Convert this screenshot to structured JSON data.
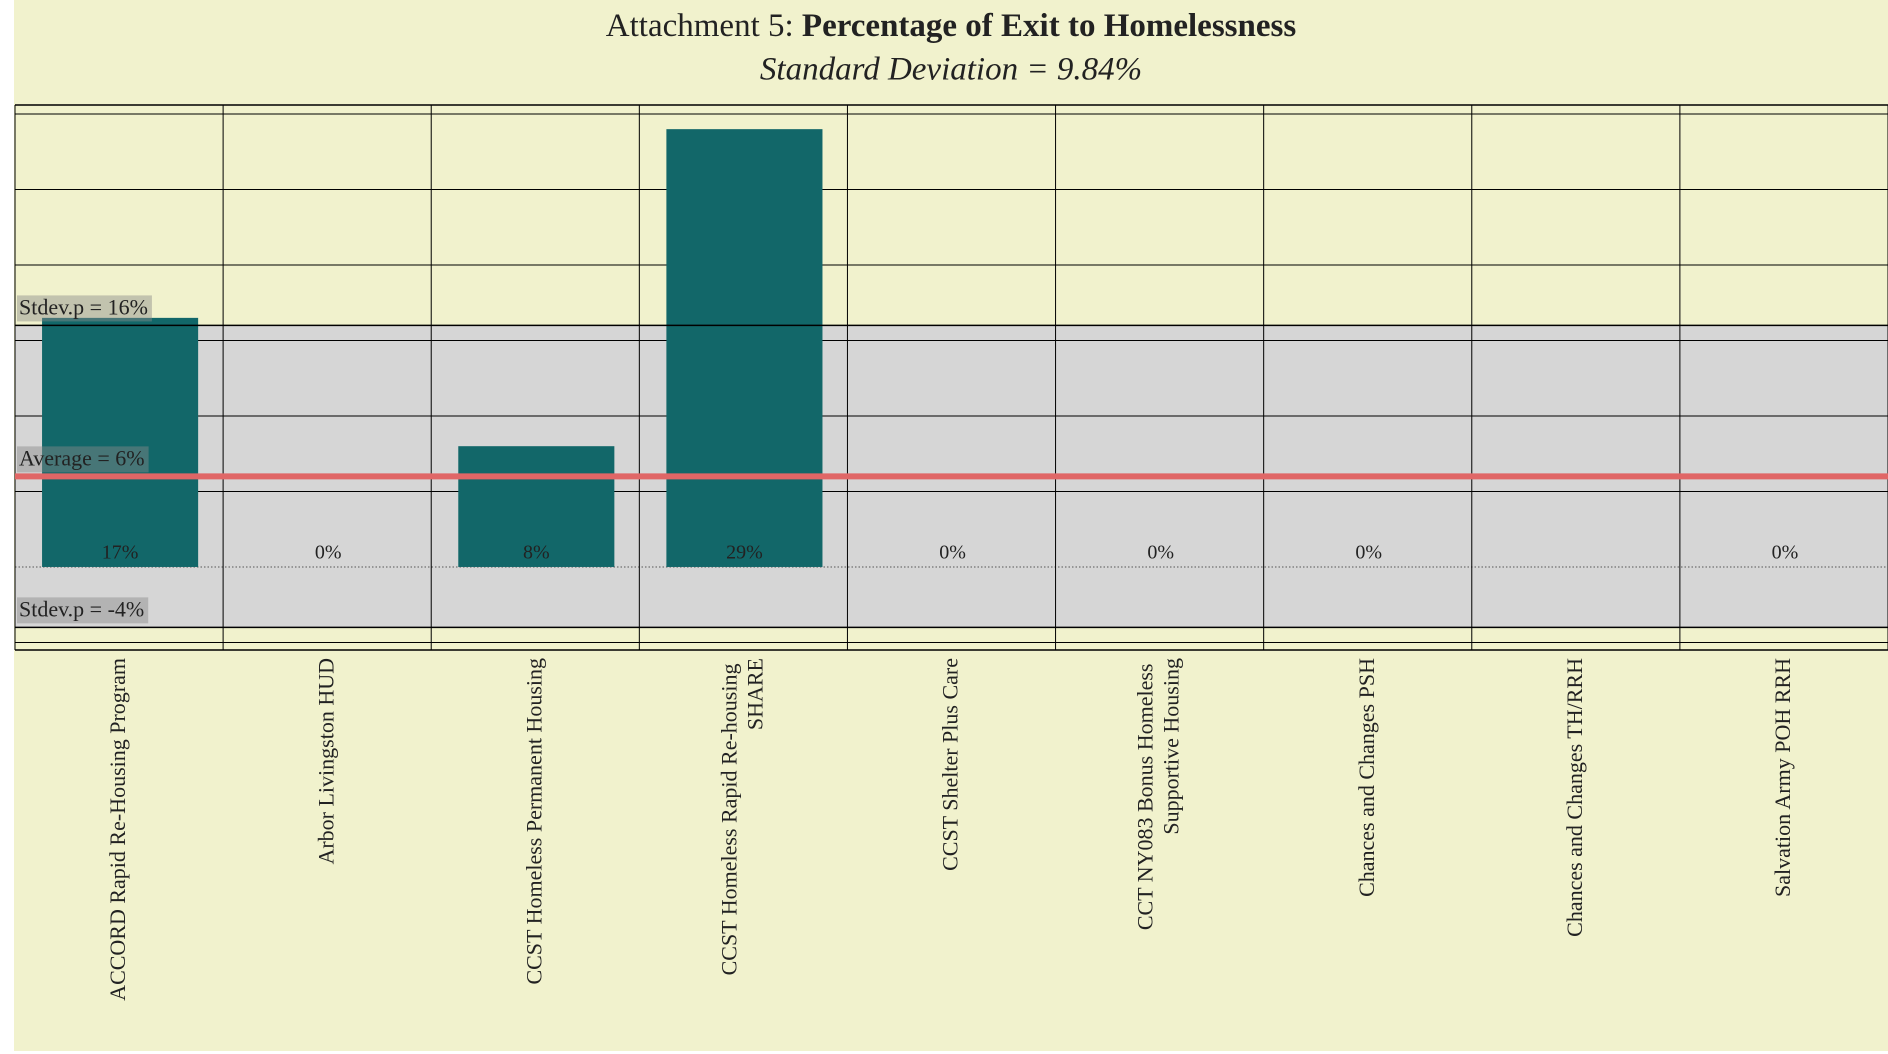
{
  "chart_data": {
    "type": "bar",
    "title_prefix": "Attachment 5:",
    "title": "Percentage of Exit to Homelessness",
    "subtitle": "Standard Deviation = 9.84%",
    "categories": [
      "ACCORD Rapid Re-Housing Program",
      "Arbor Livingston HUD",
      "CCST Homeless Permanent Housing",
      "CCST Homeless Rapid Re-housing SHARE",
      "CCST Shelter Plus Care",
      "CCT NY083 Bonus Homeless Supportive Housing",
      "Chances and Changes PSH",
      "Chances and Changes TH/RRH",
      "Salvation Army POH RRH"
    ],
    "values": [
      16.5,
      0,
      8,
      29,
      0,
      0,
      0,
      null,
      0
    ],
    "value_labels": [
      "17%",
      "0%",
      "8%",
      "29%",
      "0%",
      "0%",
      "0%",
      null,
      "0%"
    ],
    "color": "#126769",
    "ylim": [
      -5.5,
      30.6
    ],
    "yticks": [
      -5,
      0,
      5,
      10,
      15,
      20,
      25,
      30
    ],
    "grid": true,
    "reference_lines": [
      {
        "label": "Stdev.p = 16%",
        "value": 16
      },
      {
        "label": "Average = 6%",
        "value": 6,
        "color": "#e06666"
      },
      {
        "label": "Stdev.p = -4%",
        "value": -4
      }
    ],
    "band_color": "#d6d6d6"
  }
}
